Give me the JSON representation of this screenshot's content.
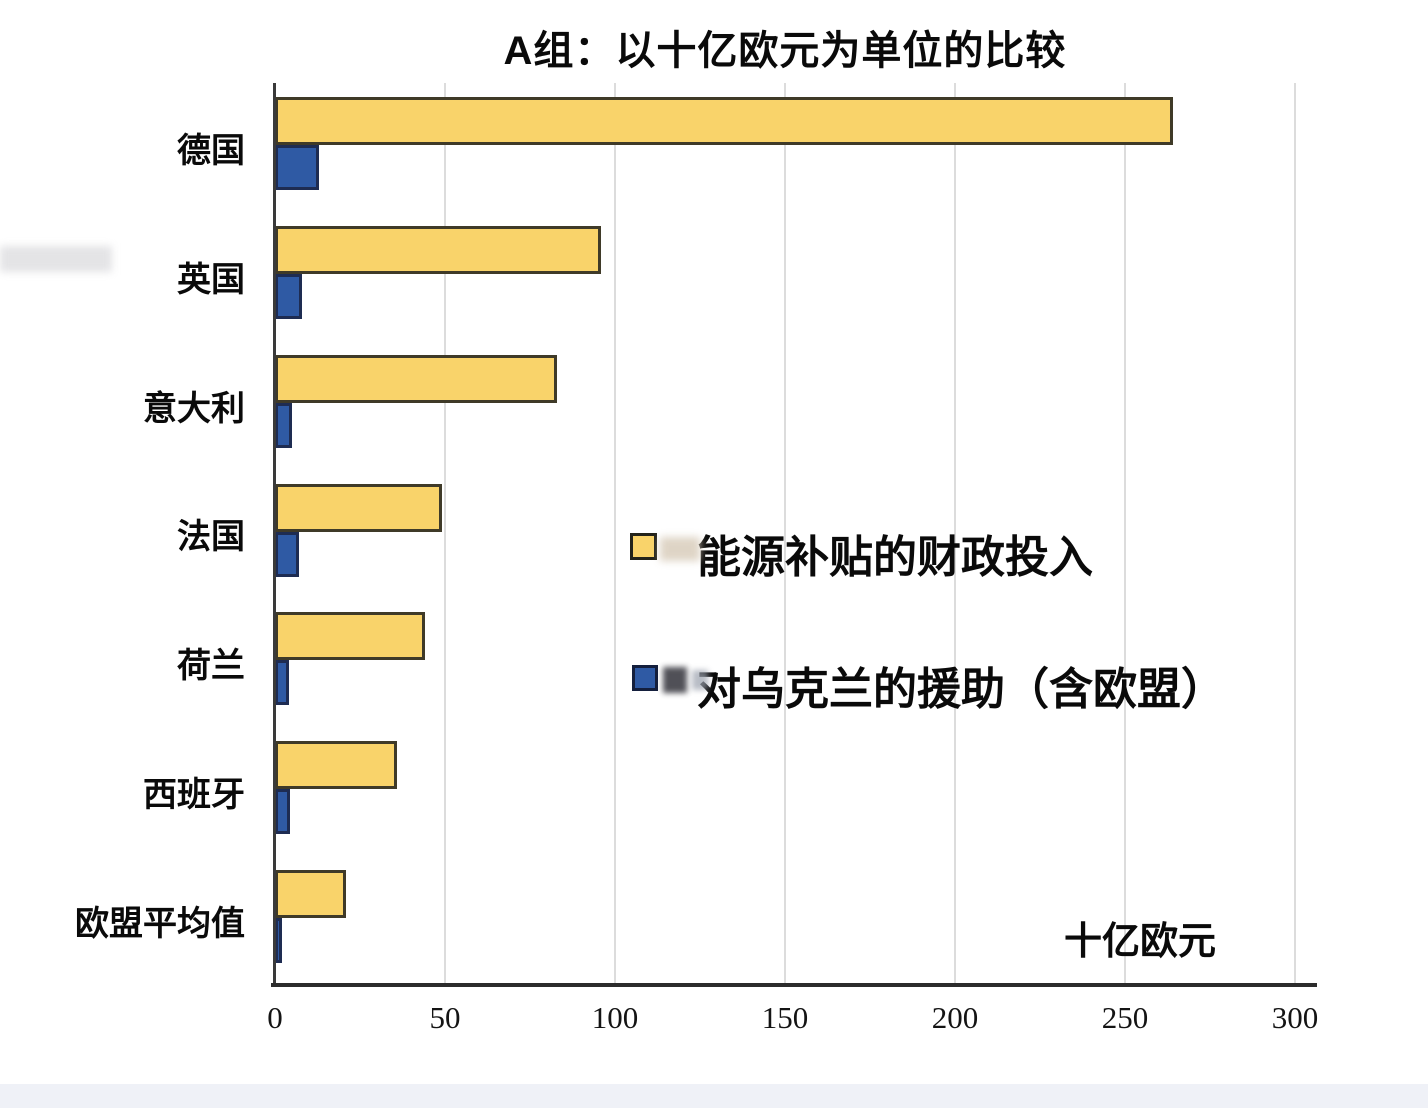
{
  "colors": {
    "series_a_fill": "#F9D36A",
    "series_a_border": "#3F3A28",
    "series_b_fill": "#2F5AA4",
    "series_b_border": "#1E2C52",
    "axis": "#2C2C2C",
    "gridline": "#DCDCDC",
    "footer_strip": "#EFF1F6"
  },
  "chart_data": {
    "type": "bar",
    "orientation": "horizontal",
    "title": "A组：以十亿欧元为单位的比较",
    "categories": [
      "德国",
      "英国",
      "意大利",
      "法国",
      "荷兰",
      "西班牙",
      "欧盟平均值"
    ],
    "series": [
      {
        "name": "能源补贴的财政投入",
        "color": "#F9D36A",
        "values": [
          264,
          96,
          83,
          49,
          44,
          36,
          21
        ]
      },
      {
        "name": "对乌克兰的援助（含欧盟）",
        "color": "#2F5AA4",
        "values": [
          13,
          8,
          5,
          7,
          4,
          4.5,
          2
        ]
      }
    ],
    "xlabel": "十亿欧元",
    "xlim": [
      0,
      300
    ],
    "xticks": [
      0,
      50,
      100,
      150,
      200,
      250,
      300
    ],
    "grid": true,
    "legend_position": "inside-center-right"
  }
}
